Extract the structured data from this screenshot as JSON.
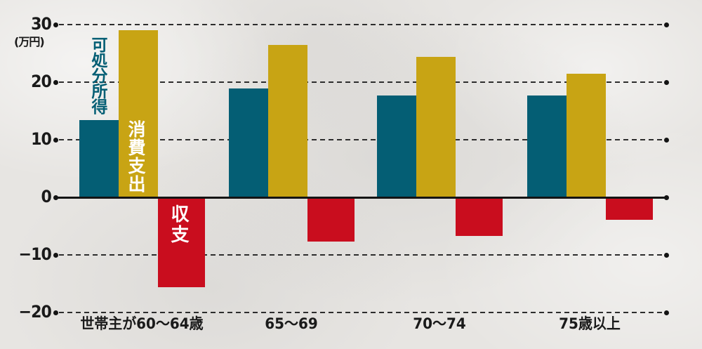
{
  "chart_data": {
    "type": "bar",
    "title": "",
    "unit": "(万円)",
    "categories": [
      "世帯主が60〜64歳",
      "65〜69",
      "70〜74",
      "75歳以上"
    ],
    "series": [
      {
        "name": "可処分所得",
        "color": "#045e74",
        "values": [
          13.4,
          18.9,
          17.7,
          17.7
        ]
      },
      {
        "name": "消費支出",
        "color": "#c8a414",
        "values": [
          29.0,
          26.5,
          24.4,
          21.5
        ]
      },
      {
        "name": "収支",
        "color": "#c90d1e",
        "values": [
          -15.6,
          -7.7,
          -6.7,
          -3.9
        ]
      }
    ],
    "yticks": [
      {
        "value": 30,
        "label": "30"
      },
      {
        "value": 20,
        "label": "20"
      },
      {
        "value": 10,
        "label": "10"
      },
      {
        "value": 0,
        "label": "0"
      },
      {
        "value": -10,
        "label": "−10"
      },
      {
        "value": -20,
        "label": "−20"
      }
    ],
    "ylim": [
      -20,
      30
    ],
    "grid": "dashed horizontal lines with black endpoint dots, solid zero axis",
    "legend_position": "in-plot vertical labels on first group"
  },
  "colors": {
    "background": "#e7e5e2",
    "axis": "#141414",
    "grid": "#2d2d2d",
    "tick_text": "#1a1a1a",
    "income_bar": "#045e74",
    "expense_bar": "#c8a414",
    "balance_bar": "#c90d1e",
    "on_bar_text": "#ffffff"
  }
}
